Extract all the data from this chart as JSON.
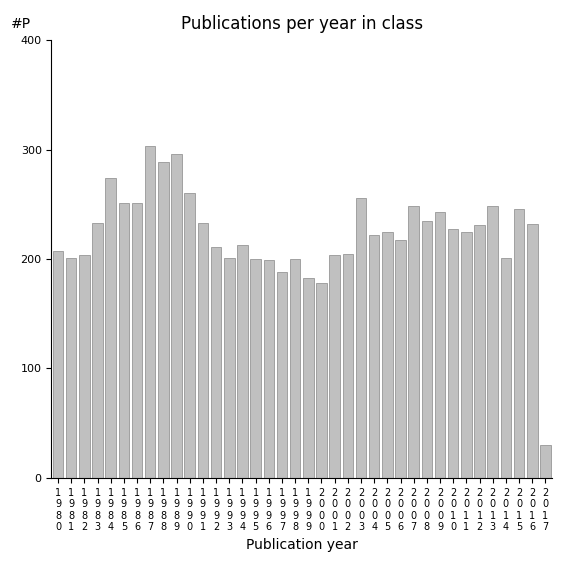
{
  "title": "Publications per year in class",
  "xlabel": "Publication year",
  "ylabel": "#P",
  "ylim": [
    0,
    400
  ],
  "yticks": [
    0,
    100,
    200,
    300,
    400
  ],
  "bar_color": "#c0c0c0",
  "bar_edgecolor": "#888888",
  "categories": [
    "1980",
    "1981",
    "1982",
    "1983",
    "1984",
    "1985",
    "1986",
    "1987",
    "1988",
    "1989",
    "1990",
    "1991",
    "1992",
    "1993",
    "1994",
    "1995",
    "1996",
    "1997",
    "1998",
    "1999",
    "2000",
    "2001",
    "2002",
    "2003",
    "2004",
    "2005",
    "2006",
    "2007",
    "2008",
    "2009",
    "2010",
    "2011",
    "2012",
    "2013",
    "2014",
    "2015",
    "2016",
    "2017"
  ],
  "values": [
    207,
    201,
    204,
    233,
    274,
    251,
    251,
    303,
    289,
    296,
    260,
    233,
    211,
    201,
    213,
    200,
    199,
    188,
    200,
    183,
    178,
    204,
    205,
    256,
    222,
    225,
    217,
    248,
    235,
    243,
    227,
    225,
    231,
    248,
    201,
    246,
    232,
    30
  ],
  "background_color": "#ffffff",
  "title_fontsize": 12,
  "label_fontsize": 10,
  "tick_fontsize": 7
}
